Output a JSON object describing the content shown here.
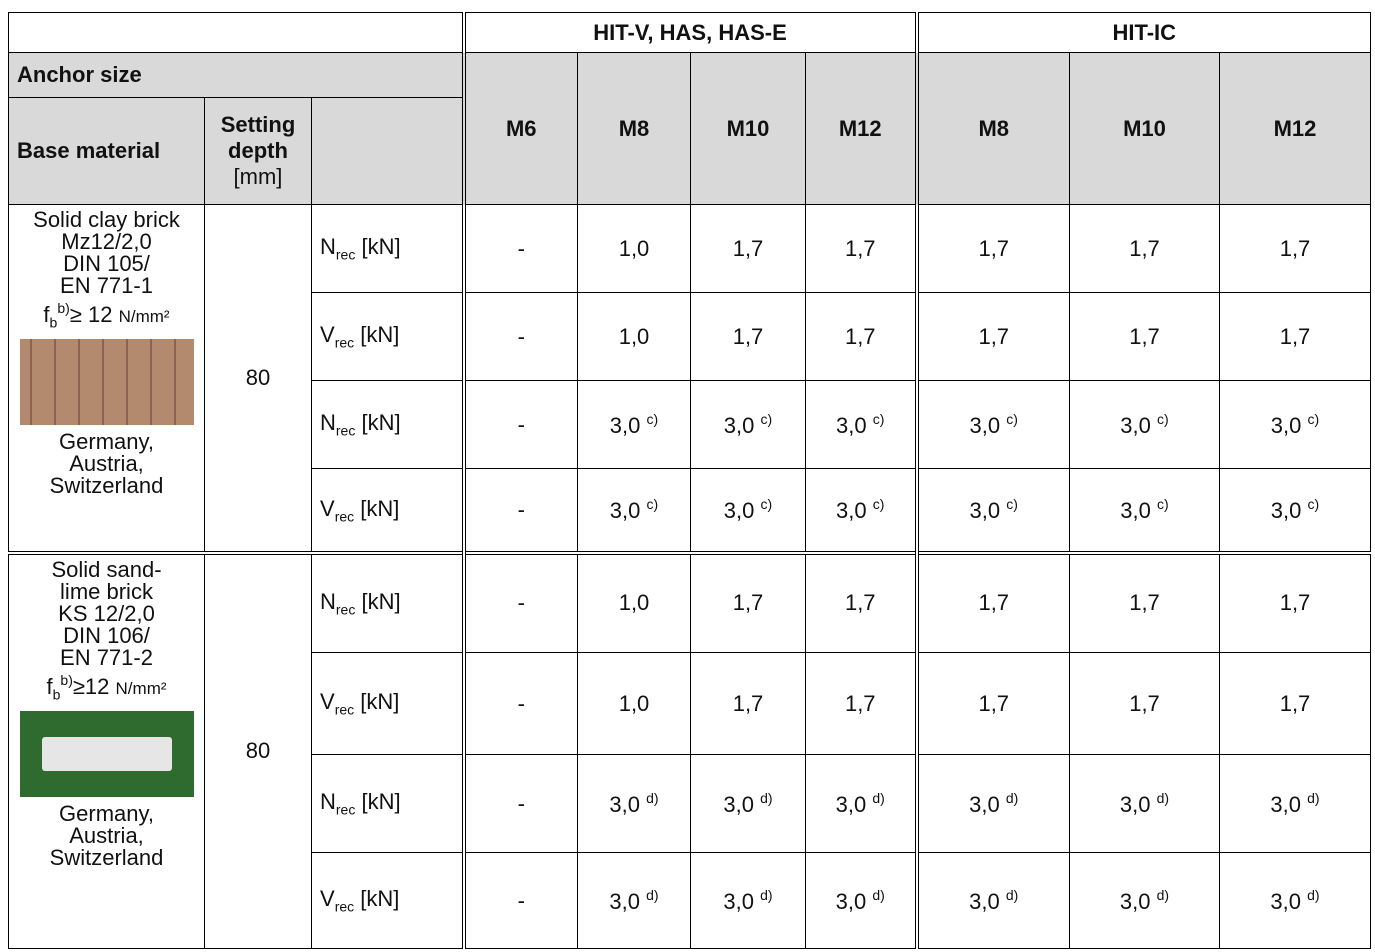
{
  "header": {
    "groups": [
      "HIT-V, HAS, HAS-E",
      "HIT-IC"
    ],
    "anchor_size": "Anchor size",
    "sizes": [
      "M6",
      "M8",
      "M10",
      "M12",
      "M8",
      "M10",
      "M12"
    ],
    "base_material": "Base material",
    "setting_depth": {
      "label": "Setting depth",
      "unit": "[mm]"
    }
  },
  "sections": [
    {
      "material": [
        "Solid clay brick",
        "Mz12/2,0",
        "DIN 105/",
        "EN 771-1"
      ],
      "strength": {
        "base": "f",
        "sub": "b",
        "sup": "b)",
        "text": "≥ 12",
        "unit": "N/mm²"
      },
      "origin": [
        "Germany,",
        "Austria,",
        "Switzerland"
      ],
      "depth": "80",
      "rows": [
        {
          "symbol": "N",
          "sub": "rec",
          "unit": "[kN]",
          "values": [
            "-",
            "1,0",
            "1,7",
            "1,7",
            "1,7",
            "1,7",
            "1,7"
          ]
        },
        {
          "symbol": "V",
          "sub": "rec",
          "unit": "[kN]",
          "values": [
            "-",
            "1,0",
            "1,7",
            "1,7",
            "1,7",
            "1,7",
            "1,7"
          ]
        },
        {
          "symbol": "N",
          "sub": "rec",
          "unit": "[kN]",
          "values": [
            "-",
            {
              "value": "3,0",
              "note": "c)"
            },
            {
              "value": "3,0",
              "note": "c)"
            },
            {
              "value": "3,0",
              "note": "c)"
            },
            {
              "value": "3,0",
              "note": "c)"
            },
            {
              "value": "3,0",
              "note": "c)"
            },
            {
              "value": "3,0",
              "note": "c)"
            }
          ]
        },
        {
          "symbol": "V",
          "sub": "rec",
          "unit": "[kN]",
          "values": [
            "-",
            {
              "value": "3,0",
              "note": "c)"
            },
            {
              "value": "3,0",
              "note": "c)"
            },
            {
              "value": "3,0",
              "note": "c)"
            },
            {
              "value": "3,0",
              "note": "c)"
            },
            {
              "value": "3,0",
              "note": "c)"
            },
            {
              "value": "3,0",
              "note": "c)"
            }
          ]
        }
      ]
    },
    {
      "material": [
        "Solid sand-",
        "lime brick",
        "KS 12/2,0",
        "DIN 106/",
        "EN 771-2"
      ],
      "strength": {
        "base": "f",
        "sub": "b",
        "sup": "b)",
        "text": "≥12",
        "unit": "N/mm²"
      },
      "origin": [
        "Germany,",
        "Austria,",
        "Switzerland"
      ],
      "depth": "80",
      "rows": [
        {
          "symbol": "N",
          "sub": "rec",
          "unit": "[kN]",
          "values": [
            "-",
            "1,0",
            "1,7",
            "1,7",
            "1,7",
            "1,7",
            "1,7"
          ]
        },
        {
          "symbol": "V",
          "sub": "rec",
          "unit": "[kN]",
          "values": [
            "-",
            "1,0",
            "1,7",
            "1,7",
            "1,7",
            "1,7",
            "1,7"
          ]
        },
        {
          "symbol": "N",
          "sub": "rec",
          "unit": "[kN]",
          "values": [
            "-",
            {
              "value": "3,0",
              "note": "d)"
            },
            {
              "value": "3,0",
              "note": "d)"
            },
            {
              "value": "3,0",
              "note": "d)"
            },
            {
              "value": "3,0",
              "note": "d)"
            },
            {
              "value": "3,0",
              "note": "d)"
            },
            {
              "value": "3,0",
              "note": "d)"
            }
          ]
        },
        {
          "symbol": "V",
          "sub": "rec",
          "unit": "[kN]",
          "values": [
            "-",
            {
              "value": "3,0",
              "note": "d)"
            },
            {
              "value": "3,0",
              "note": "d)"
            },
            {
              "value": "3,0",
              "note": "d)"
            },
            {
              "value": "3,0",
              "note": "d)"
            },
            {
              "value": "3,0",
              "note": "d)"
            },
            {
              "value": "3,0",
              "note": "d)"
            }
          ]
        }
      ]
    }
  ]
}
